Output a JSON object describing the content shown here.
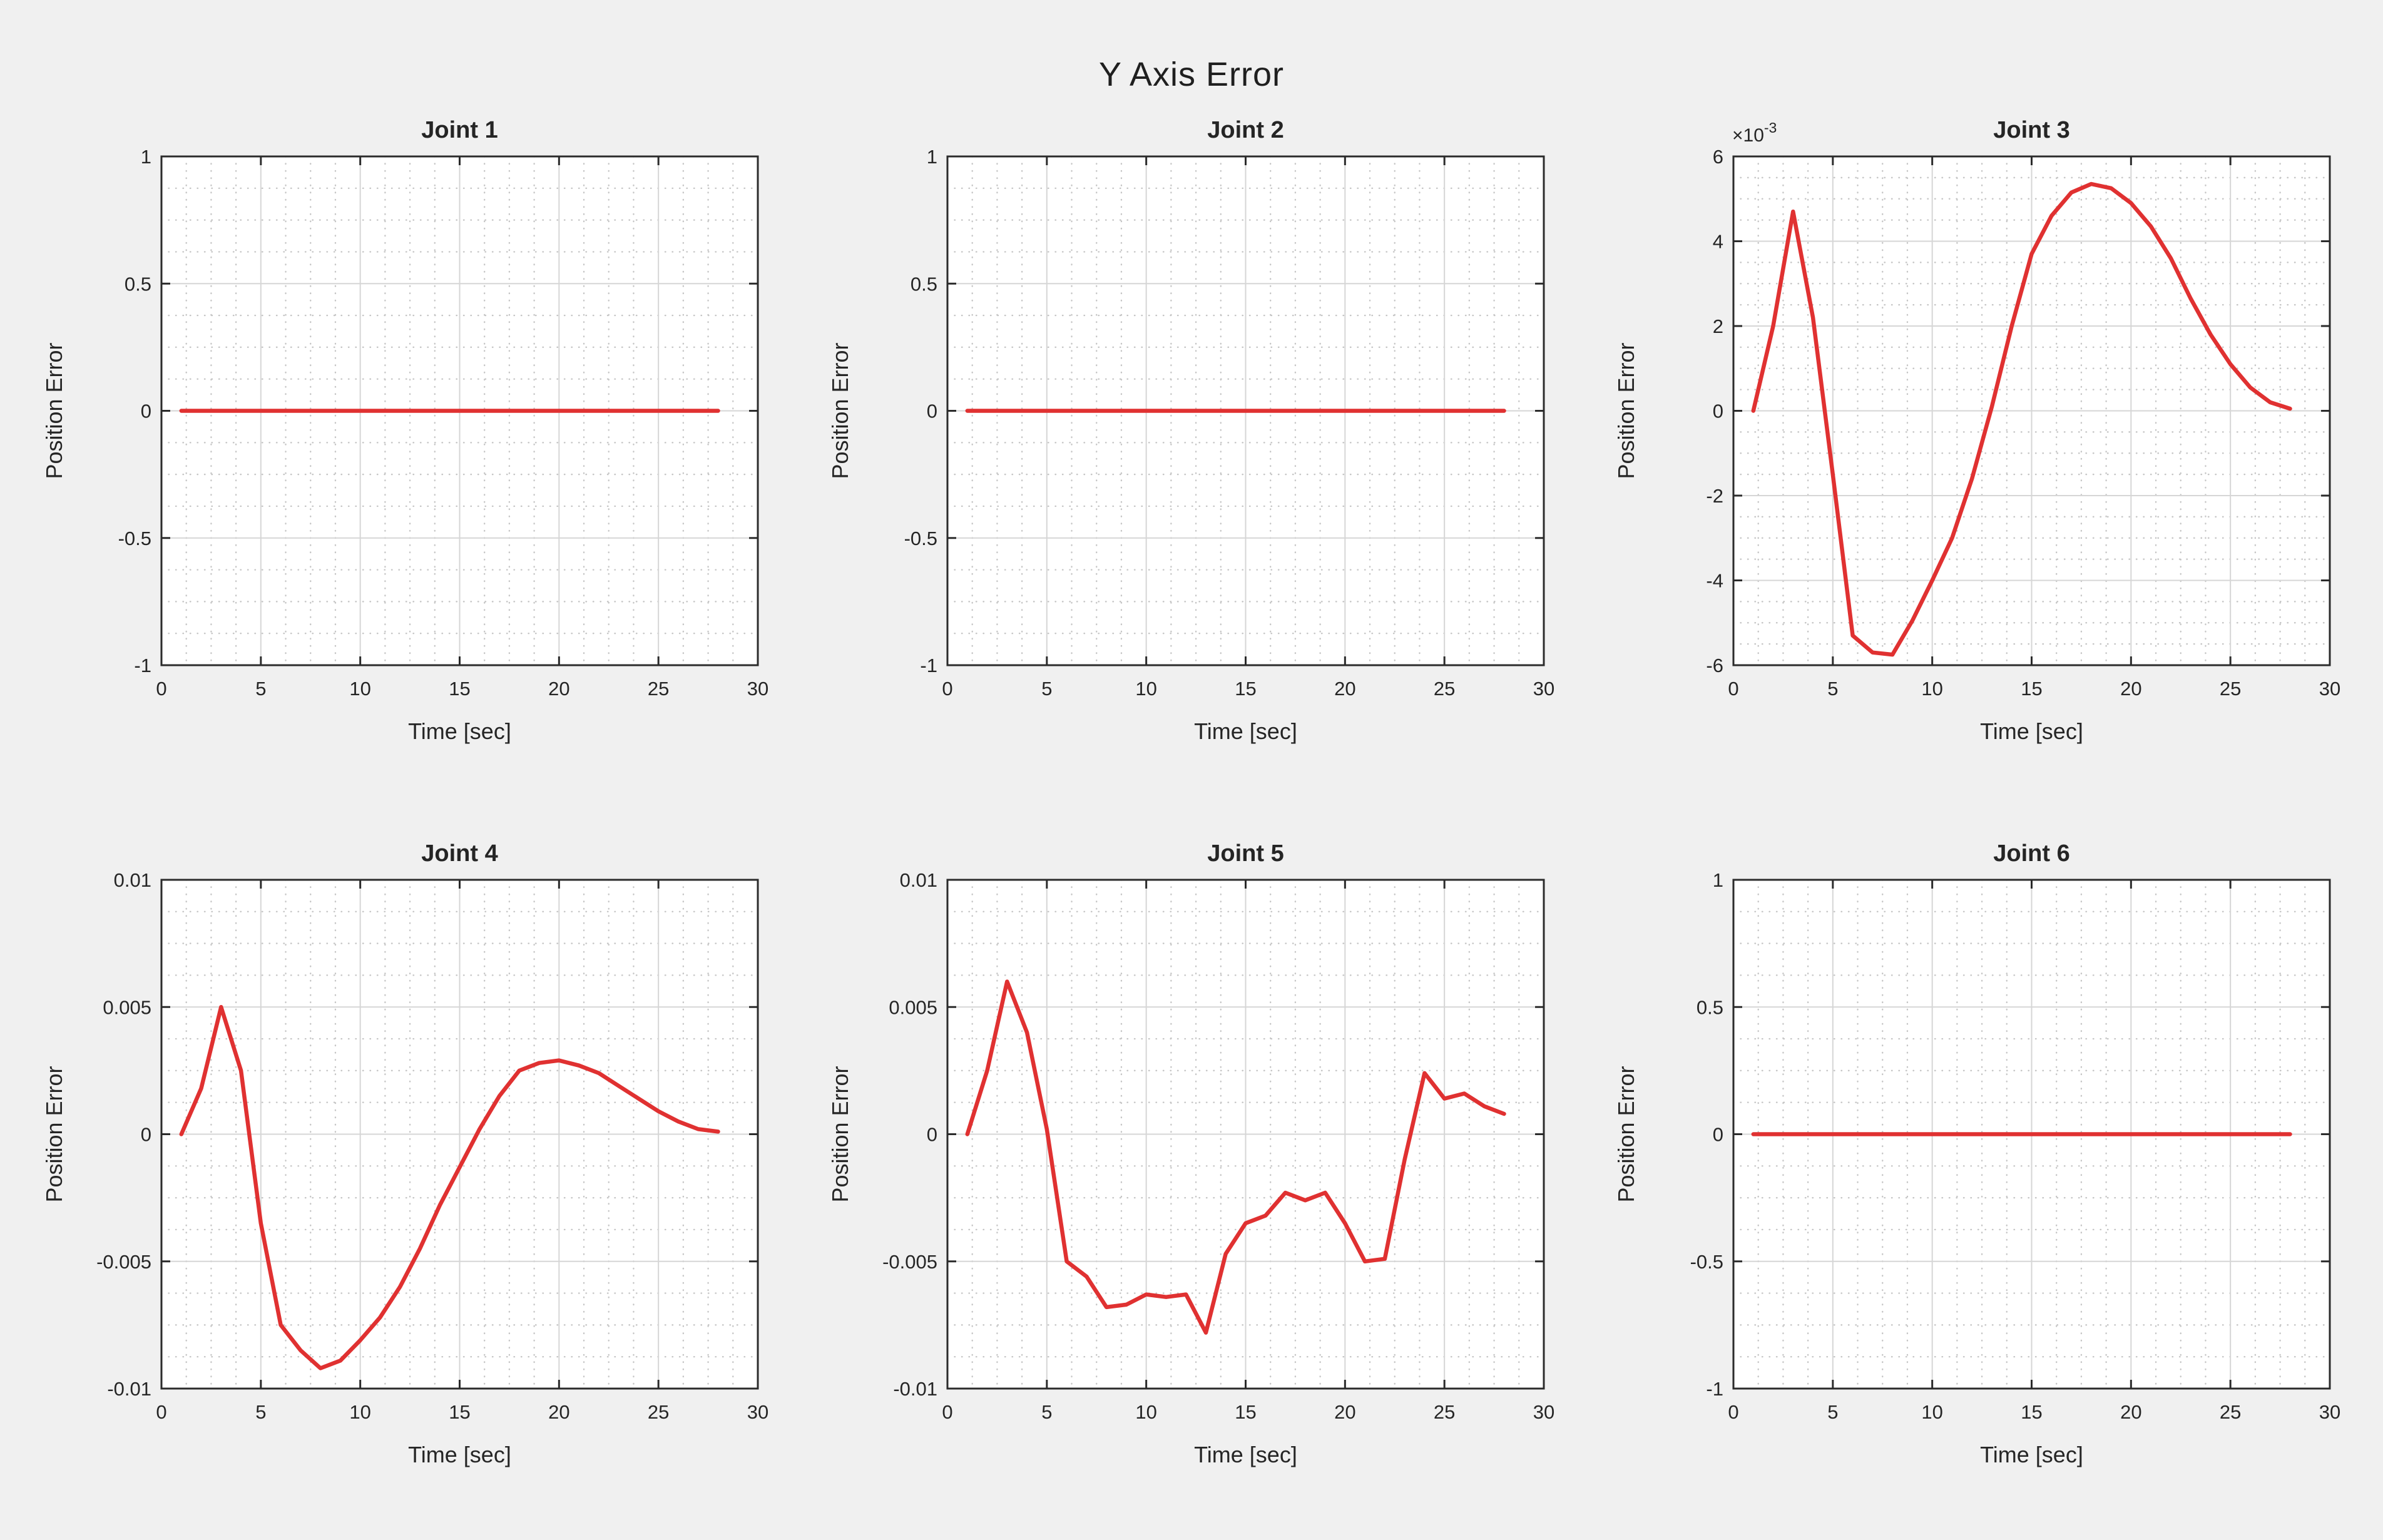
{
  "figure": {
    "title": "Y Axis Error",
    "colors": {
      "background": "#f0f0f0",
      "plot_background": "#ffffff",
      "line": "#e03131",
      "grid_major": "#d6d6d6",
      "grid_minor": "#c6c6c6",
      "axes_box": "#2b2b2b",
      "text": "#252525"
    }
  },
  "chart_data": [
    {
      "type": "line",
      "title": "Joint 1",
      "xlabel": "Time [sec]",
      "ylabel": "Position Error",
      "xlim": [
        0,
        30
      ],
      "ylim": [
        -1,
        1
      ],
      "xticks": [
        0,
        5,
        10,
        15,
        20,
        25,
        30
      ],
      "xtick_labels": [
        "0",
        "5",
        "10",
        "15",
        "20",
        "25",
        "30"
      ],
      "yticks": [
        -1,
        -0.5,
        0,
        0.5,
        1
      ],
      "ytick_labels": [
        "-1",
        "-0.5",
        "0",
        "0.5",
        "1"
      ],
      "exponent_label": null,
      "grid": "major-solid minor-dotted",
      "x": [
        1,
        2,
        3,
        4,
        5,
        6,
        7,
        8,
        9,
        10,
        11,
        12,
        13,
        14,
        15,
        16,
        17,
        18,
        19,
        20,
        21,
        22,
        23,
        24,
        25,
        26,
        27,
        28
      ],
      "y": [
        0,
        0,
        0,
        0,
        0,
        0,
        0,
        0,
        0,
        0,
        0,
        0,
        0,
        0,
        0,
        0,
        0,
        0,
        0,
        0,
        0,
        0,
        0,
        0,
        0,
        0,
        0,
        0
      ]
    },
    {
      "type": "line",
      "title": "Joint 2",
      "xlabel": "Time [sec]",
      "ylabel": "Position Error",
      "xlim": [
        0,
        30
      ],
      "ylim": [
        -1,
        1
      ],
      "xticks": [
        0,
        5,
        10,
        15,
        20,
        25,
        30
      ],
      "xtick_labels": [
        "0",
        "5",
        "10",
        "15",
        "20",
        "25",
        "30"
      ],
      "yticks": [
        -1,
        -0.5,
        0,
        0.5,
        1
      ],
      "ytick_labels": [
        "-1",
        "-0.5",
        "0",
        "0.5",
        "1"
      ],
      "exponent_label": null,
      "grid": "major-solid minor-dotted",
      "x": [
        1,
        2,
        3,
        4,
        5,
        6,
        7,
        8,
        9,
        10,
        11,
        12,
        13,
        14,
        15,
        16,
        17,
        18,
        19,
        20,
        21,
        22,
        23,
        24,
        25,
        26,
        27,
        28
      ],
      "y": [
        0,
        0,
        0,
        0,
        0,
        0,
        0,
        0,
        0,
        0,
        0,
        0,
        0,
        0,
        0,
        0,
        0,
        0,
        0,
        0,
        0,
        0,
        0,
        0,
        0,
        0,
        0,
        0
      ]
    },
    {
      "type": "line",
      "title": "Joint 3",
      "xlabel": "Time [sec]",
      "ylabel": "Position Error",
      "xlim": [
        0,
        30
      ],
      "ylim": [
        -6,
        6
      ],
      "xticks": [
        0,
        5,
        10,
        15,
        20,
        25,
        30
      ],
      "xtick_labels": [
        "0",
        "5",
        "10",
        "15",
        "20",
        "25",
        "30"
      ],
      "yticks": [
        -6,
        -4,
        -2,
        0,
        2,
        4,
        6
      ],
      "ytick_labels": [
        "-6",
        "-4",
        "-2",
        "0",
        "2",
        "4",
        "6"
      ],
      "exponent_label": {
        "base": "×10",
        "power": "-3"
      },
      "value_unit": "1e-3",
      "grid": "major-solid minor-dotted",
      "x": [
        1,
        2,
        3,
        4,
        5,
        6,
        7,
        8,
        9,
        10,
        11,
        12,
        13,
        14,
        15,
        16,
        17,
        18,
        19,
        20,
        21,
        22,
        23,
        24,
        25,
        26,
        27,
        28
      ],
      "y": [
        0,
        2.0,
        4.7,
        2.2,
        -1.5,
        -5.3,
        -5.7,
        -5.75,
        -4.95,
        -4.0,
        -3.0,
        -1.6,
        0.1,
        2.0,
        3.7,
        4.6,
        5.15,
        5.35,
        5.25,
        4.9,
        4.35,
        3.6,
        2.65,
        1.8,
        1.1,
        0.55,
        0.2,
        0.05
      ]
    },
    {
      "type": "line",
      "title": "Joint 4",
      "xlabel": "Time [sec]",
      "ylabel": "Position Error",
      "xlim": [
        0,
        30
      ],
      "ylim": [
        -0.01,
        0.01
      ],
      "xticks": [
        0,
        5,
        10,
        15,
        20,
        25,
        30
      ],
      "xtick_labels": [
        "0",
        "5",
        "10",
        "15",
        "20",
        "25",
        "30"
      ],
      "yticks": [
        -0.01,
        -0.005,
        0,
        0.005,
        0.01
      ],
      "ytick_labels": [
        "-0.01",
        "-0.005",
        "0",
        "0.005",
        "0.01"
      ],
      "exponent_label": null,
      "grid": "major-solid minor-dotted",
      "x": [
        1,
        2,
        3,
        4,
        5,
        6,
        7,
        8,
        9,
        10,
        11,
        12,
        13,
        14,
        15,
        16,
        17,
        18,
        19,
        20,
        21,
        22,
        23,
        24,
        25,
        26,
        27,
        28
      ],
      "y": [
        0,
        0.0018,
        0.005,
        0.0025,
        -0.0035,
        -0.0075,
        -0.0085,
        -0.0092,
        -0.0089,
        -0.0081,
        -0.0072,
        -0.006,
        -0.0045,
        -0.0028,
        -0.0013,
        0.0002,
        0.0015,
        0.0025,
        0.0028,
        0.0029,
        0.0027,
        0.0024,
        0.0019,
        0.0014,
        0.0009,
        0.0005,
        0.0002,
        0.0001
      ]
    },
    {
      "type": "line",
      "title": "Joint 5",
      "xlabel": "Time [sec]",
      "ylabel": "Position Error",
      "xlim": [
        0,
        30
      ],
      "ylim": [
        -0.01,
        0.01
      ],
      "xticks": [
        0,
        5,
        10,
        15,
        20,
        25,
        30
      ],
      "xtick_labels": [
        "0",
        "5",
        "10",
        "15",
        "20",
        "25",
        "30"
      ],
      "yticks": [
        -0.01,
        -0.005,
        0,
        0.005,
        0.01
      ],
      "ytick_labels": [
        "-0.01",
        "-0.005",
        "0",
        "0.005",
        "0.01"
      ],
      "exponent_label": null,
      "grid": "major-solid minor-dotted",
      "x": [
        1,
        2,
        3,
        4,
        5,
        6,
        7,
        8,
        9,
        10,
        11,
        12,
        13,
        14,
        15,
        16,
        17,
        18,
        19,
        20,
        21,
        22,
        23,
        24,
        25,
        26,
        27,
        28
      ],
      "y": [
        0,
        0.0025,
        0.006,
        0.004,
        0.0002,
        -0.005,
        -0.0056,
        -0.0068,
        -0.0067,
        -0.0063,
        -0.0064,
        -0.0063,
        -0.0078,
        -0.0047,
        -0.0035,
        -0.0032,
        -0.0023,
        -0.0026,
        -0.0023,
        -0.0035,
        -0.005,
        -0.0049,
        -0.001,
        0.0024,
        0.0014,
        0.0016,
        0.0011,
        0.0008
      ]
    },
    {
      "type": "line",
      "title": "Joint 6",
      "xlabel": "Time [sec]",
      "ylabel": "Position Error",
      "xlim": [
        0,
        30
      ],
      "ylim": [
        -1,
        1
      ],
      "xticks": [
        0,
        5,
        10,
        15,
        20,
        25,
        30
      ],
      "xtick_labels": [
        "0",
        "5",
        "10",
        "15",
        "20",
        "25",
        "30"
      ],
      "yticks": [
        -1,
        -0.5,
        0,
        0.5,
        1
      ],
      "ytick_labels": [
        "-1",
        "-0.5",
        "0",
        "0.5",
        "1"
      ],
      "exponent_label": null,
      "grid": "major-solid minor-dotted",
      "x": [
        1,
        2,
        3,
        4,
        5,
        6,
        7,
        8,
        9,
        10,
        11,
        12,
        13,
        14,
        15,
        16,
        17,
        18,
        19,
        20,
        21,
        22,
        23,
        24,
        25,
        26,
        27,
        28
      ],
      "y": [
        0,
        0,
        0,
        0,
        0,
        0,
        0,
        0,
        0,
        0,
        0,
        0,
        0,
        0,
        0,
        0,
        0,
        0,
        0,
        0,
        0,
        0,
        0,
        0,
        0,
        0,
        0,
        0
      ]
    }
  ]
}
